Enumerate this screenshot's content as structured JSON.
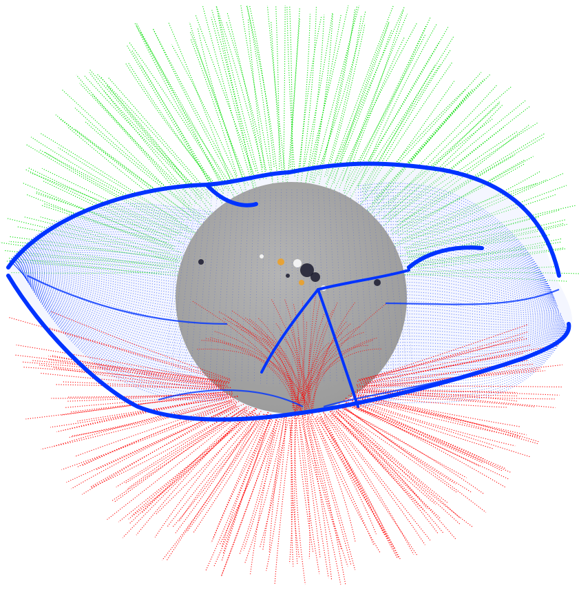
{
  "figure": {
    "background_color": "#ffffff",
    "sun_surface_color": "#9a9a9a",
    "positive_open_field_color": "#00dd00",
    "negative_open_field_color": "#ff0000",
    "heliospheric_current_sheet_color": "#0033ff",
    "active_region_dark_color": "#1a1a2e",
    "active_region_bright_color": "#ffffff",
    "active_region_orange_color": "#f0a020"
  }
}
